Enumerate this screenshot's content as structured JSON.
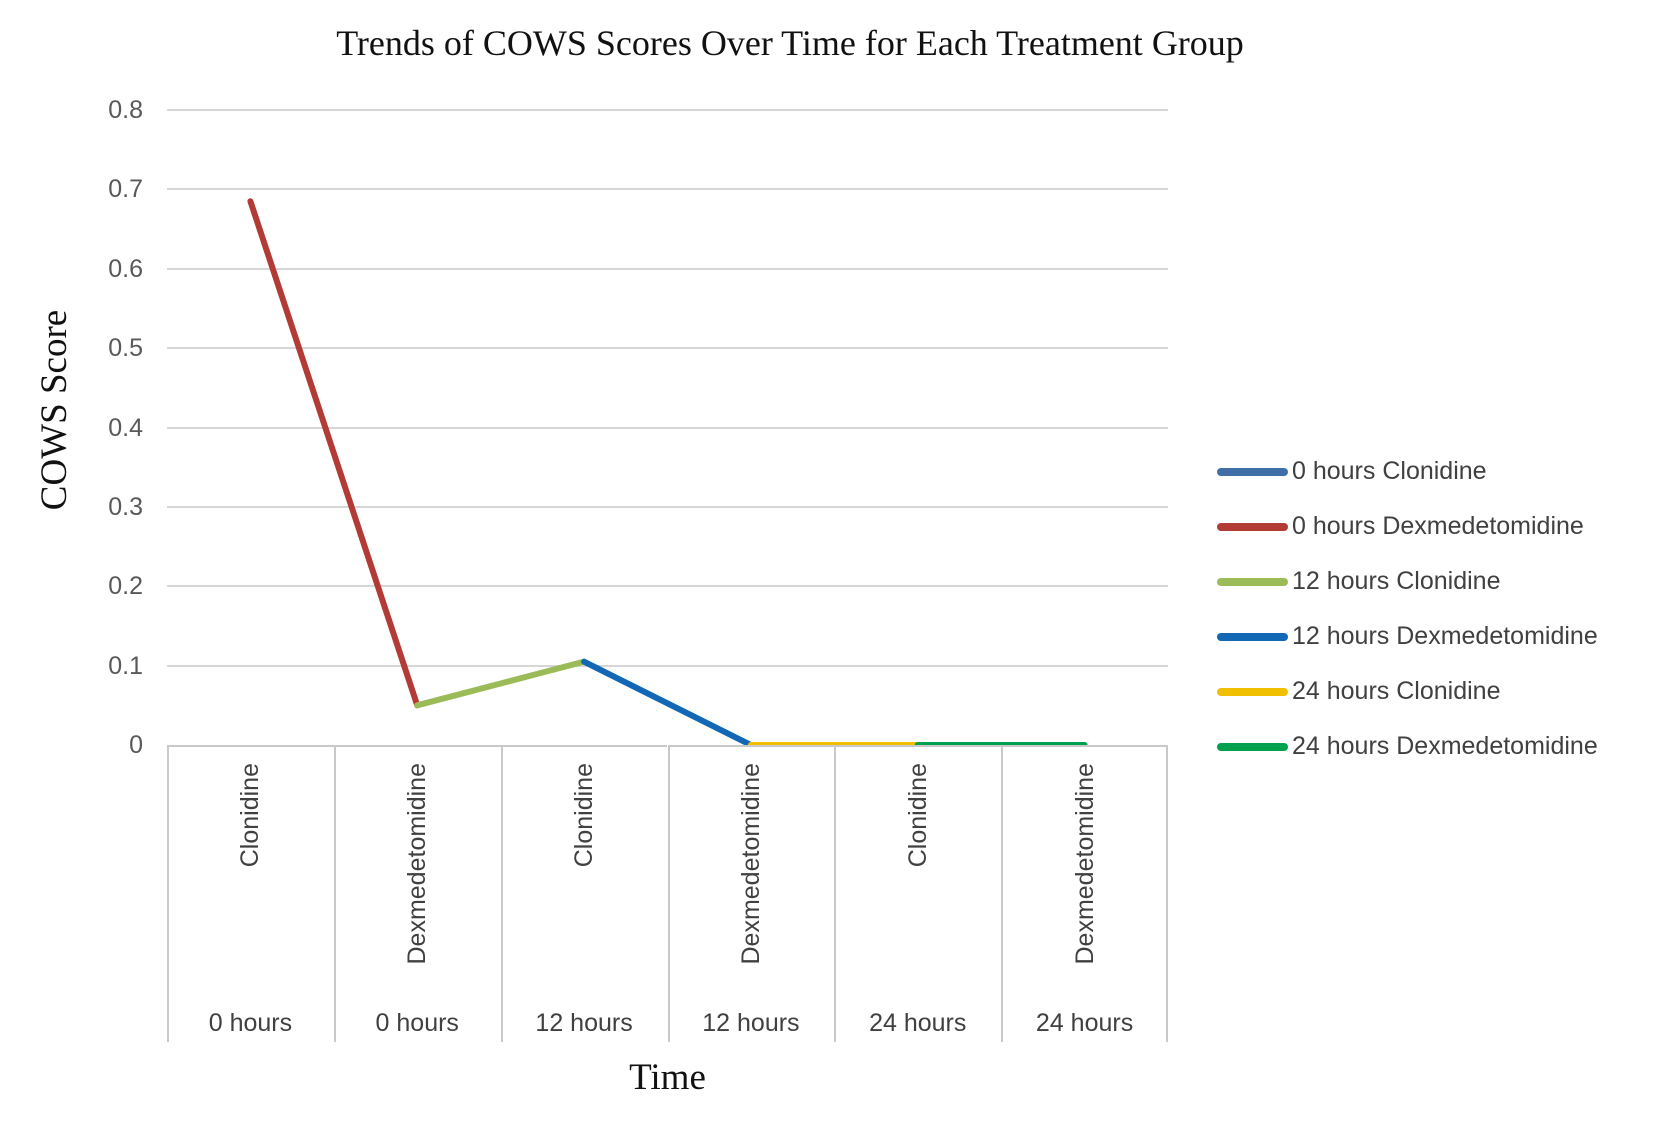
{
  "title": "Trends of COWS Scores Over Time for Each Treatment Group",
  "yaxis": {
    "label": "COWS Score",
    "tick_labels": [
      "0",
      "0.1",
      "0.2",
      "0.3",
      "0.4",
      "0.5",
      "0.6",
      "0.7",
      "0.8"
    ]
  },
  "xaxis": {
    "label": "Time"
  },
  "chart_data": {
    "type": "line",
    "title": "Trends of COWS Scores Over Time for Each Treatment Group",
    "xlabel": "Time",
    "ylabel": "COWS Score",
    "ylim": [
      0,
      0.8
    ],
    "ytick_interval": 0.1,
    "grid": true,
    "legend_position": "right",
    "categories": [
      {
        "drug": "Clonidine",
        "time": "0 hours"
      },
      {
        "drug": "Dexmedetomidine",
        "time": "0 hours"
      },
      {
        "drug": "Clonidine",
        "time": "12 hours"
      },
      {
        "drug": "Dexmedetomidine",
        "time": "12 hours"
      },
      {
        "drug": "Clonidine",
        "time": "24 hours"
      },
      {
        "drug": "Dexmedetomidine",
        "time": "24 hours"
      }
    ],
    "values": [
      0.685,
      0.05,
      0.105,
      0,
      0,
      0
    ],
    "segment_colors": [
      "#b23b35",
      "#9bbb59",
      "#1268b4",
      "#f0c000",
      "#00a14e"
    ],
    "legend": [
      {
        "label": "0 hours Clonidine",
        "color": "#3e6fa7"
      },
      {
        "label": "0 hours Dexmedetomidine",
        "color": "#b23b35"
      },
      {
        "label": "12 hours Clonidine",
        "color": "#9bbb59"
      },
      {
        "label": "12 hours Dexmedetomidine",
        "color": "#1268b4"
      },
      {
        "label": "24 hours Clonidine",
        "color": "#f0c000"
      },
      {
        "label": "24 hours Dexmedetomidine",
        "color": "#00a14e"
      }
    ],
    "colors": {
      "gridline": "#d6d6d6",
      "axis_box": "#c9c9c9",
      "tick_text": "#595959",
      "label_text": "#404040"
    }
  }
}
